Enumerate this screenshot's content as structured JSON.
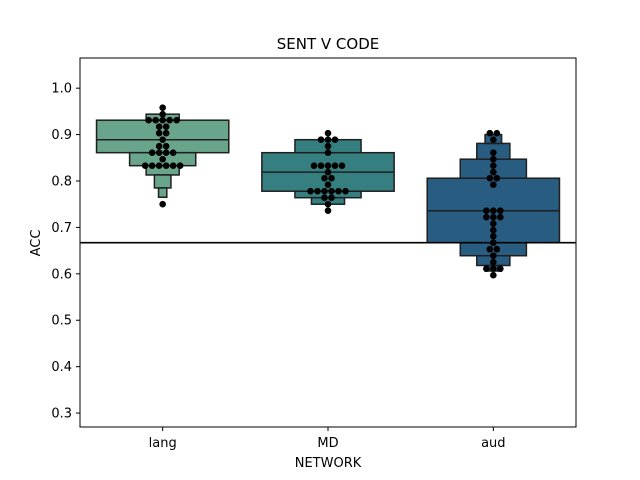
{
  "chart_data": {
    "type": "boxen",
    "title": "SENT V CODE",
    "xlabel": "NETWORK",
    "ylabel": "ACC",
    "categories": [
      "lang",
      "MD",
      "aud"
    ],
    "ylim": [
      0.27,
      1.065
    ],
    "yticks": [
      0.3,
      0.4,
      0.5,
      0.6,
      0.7,
      0.8,
      0.9,
      1.0
    ],
    "ytick_labels": [
      "0.3",
      "0.4",
      "0.5",
      "0.6",
      "0.7",
      "0.8",
      "0.9",
      "1.0"
    ],
    "reference_line": 0.667,
    "colors": {
      "lang": "#69a58b",
      "MD": "#357f80",
      "aud": "#285c80",
      "points": "#000000",
      "edge": "#1f1f1f"
    },
    "groups": [
      {
        "name": "lang",
        "median": 0.889,
        "boxes": [
          {
            "lo": 0.861,
            "hi": 0.931,
            "frac": 1.0
          },
          {
            "lo": 0.833,
            "hi": 0.861,
            "frac": 0.5
          },
          {
            "lo": 0.931,
            "hi": 0.944,
            "frac": 0.25
          },
          {
            "lo": 0.813,
            "hi": 0.833,
            "frac": 0.25
          },
          {
            "lo": 0.785,
            "hi": 0.813,
            "frac": 0.125
          },
          {
            "lo": 0.765,
            "hi": 0.785,
            "frac": 0.0625
          }
        ],
        "points": [
          0.958,
          0.944,
          0.931,
          0.931,
          0.931,
          0.931,
          0.931,
          0.917,
          0.917,
          0.903,
          0.903,
          0.889,
          0.875,
          0.875,
          0.861,
          0.861,
          0.861,
          0.861,
          0.847,
          0.833,
          0.833,
          0.833,
          0.833,
          0.833,
          0.833,
          0.75
        ]
      },
      {
        "name": "MD",
        "median": 0.819,
        "boxes": [
          {
            "lo": 0.778,
            "hi": 0.861,
            "frac": 1.0
          },
          {
            "lo": 0.861,
            "hi": 0.889,
            "frac": 0.5
          },
          {
            "lo": 0.764,
            "hi": 0.778,
            "frac": 0.5
          },
          {
            "lo": 0.75,
            "hi": 0.764,
            "frac": 0.25
          }
        ],
        "points": [
          0.903,
          0.889,
          0.889,
          0.889,
          0.875,
          0.861,
          0.833,
          0.833,
          0.833,
          0.833,
          0.833,
          0.819,
          0.806,
          0.806,
          0.792,
          0.778,
          0.778,
          0.778,
          0.778,
          0.778,
          0.778,
          0.764,
          0.764,
          0.75,
          0.736
        ]
      },
      {
        "name": "aud",
        "median": 0.736,
        "boxes": [
          {
            "lo": 0.667,
            "hi": 0.806,
            "frac": 1.0
          },
          {
            "lo": 0.806,
            "hi": 0.847,
            "frac": 0.5
          },
          {
            "lo": 0.639,
            "hi": 0.667,
            "frac": 0.5
          },
          {
            "lo": 0.847,
            "hi": 0.881,
            "frac": 0.25
          },
          {
            "lo": 0.618,
            "hi": 0.639,
            "frac": 0.25
          },
          {
            "lo": 0.881,
            "hi": 0.9,
            "frac": 0.125
          },
          {
            "lo": 0.606,
            "hi": 0.618,
            "frac": 0.125
          }
        ],
        "points": [
          0.903,
          0.903,
          0.889,
          0.861,
          0.847,
          0.833,
          0.819,
          0.806,
          0.806,
          0.792,
          0.736,
          0.736,
          0.736,
          0.722,
          0.722,
          0.722,
          0.708,
          0.694,
          0.681,
          0.667,
          0.653,
          0.653,
          0.639,
          0.625,
          0.611,
          0.611,
          0.611,
          0.597
        ]
      }
    ]
  }
}
